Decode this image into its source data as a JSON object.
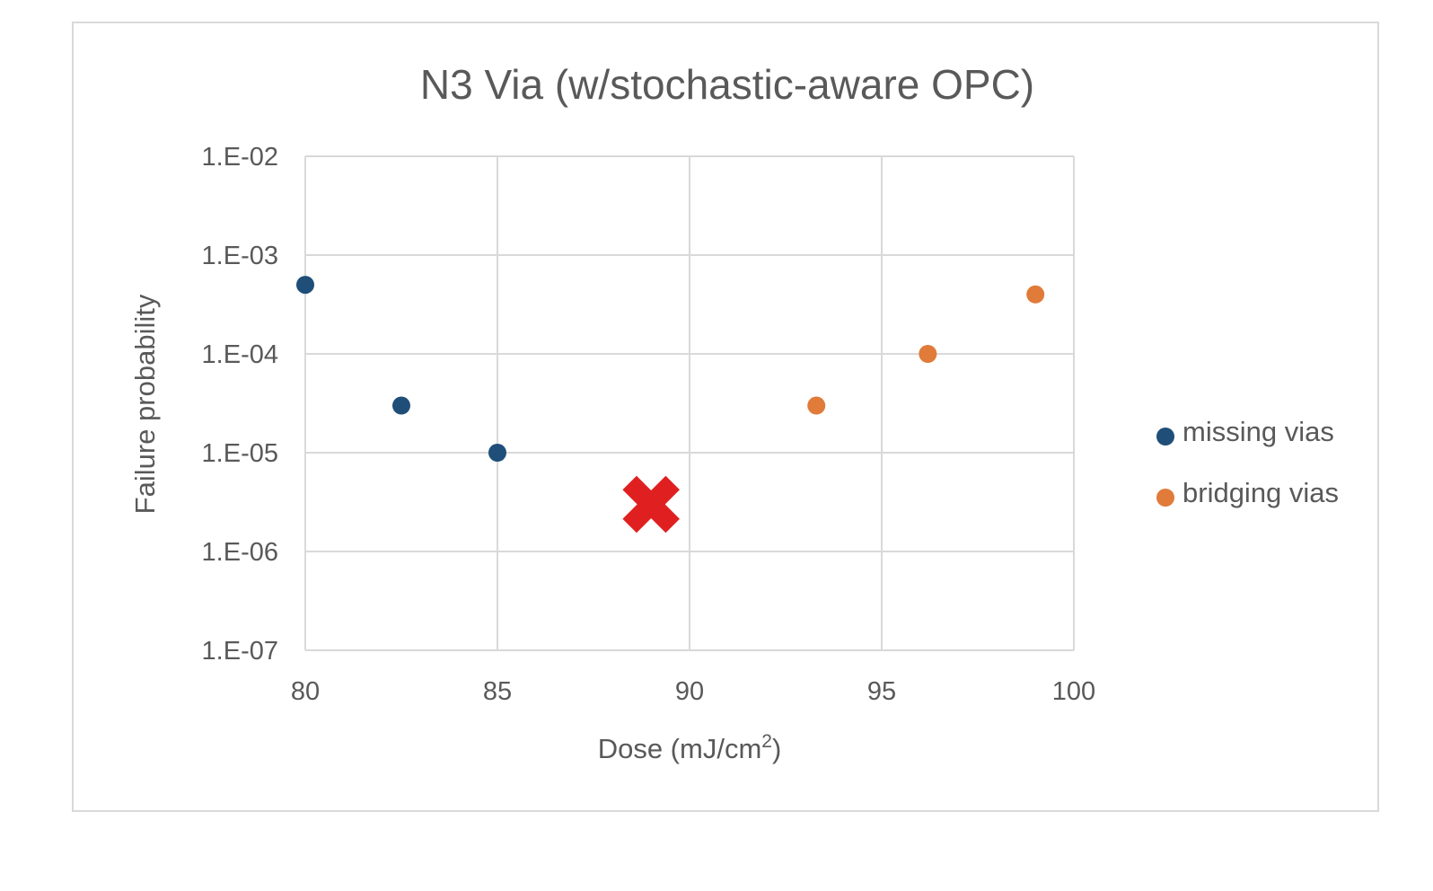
{
  "chart_data": {
    "type": "scatter",
    "title": "N3 Via (w/stochastic-aware OPC)",
    "xlabel": "Dose (mJ/cm",
    "xlabel_superscript": "2",
    "xlabel_suffix": ")",
    "ylabel": "Failure probability",
    "xlim": [
      80,
      100
    ],
    "ylim": [
      1e-07,
      0.01
    ],
    "y_scale": "log",
    "grid": true,
    "legend_position": "right",
    "x_ticks": [
      80,
      85,
      90,
      95,
      100
    ],
    "x_tick_labels": [
      "80",
      "85",
      "90",
      "95",
      "100"
    ],
    "y_ticks": [
      0.01,
      0.001,
      0.0001,
      1e-05,
      1e-06,
      1e-07
    ],
    "y_tick_labels": [
      "1.E-02",
      "1.E-03",
      "1.E-04",
      "1.E-05",
      "1.E-06",
      "1.E-07"
    ],
    "series": [
      {
        "name": "missing vias",
        "color": "#1f4e79",
        "points": [
          {
            "x": 80,
            "y": 0.0005
          },
          {
            "x": 82.5,
            "y": 3e-05
          },
          {
            "x": 85,
            "y": 1e-05
          }
        ]
      },
      {
        "name": "bridging vias",
        "color": "#e07b39",
        "points": [
          {
            "x": 93.3,
            "y": 3e-05
          },
          {
            "x": 96.2,
            "y": 0.0001
          },
          {
            "x": 99,
            "y": 0.0004
          }
        ]
      }
    ],
    "annotations": [
      {
        "type": "x-marker",
        "x": 89.0,
        "y": 3e-06,
        "color": "#e02020"
      }
    ]
  }
}
